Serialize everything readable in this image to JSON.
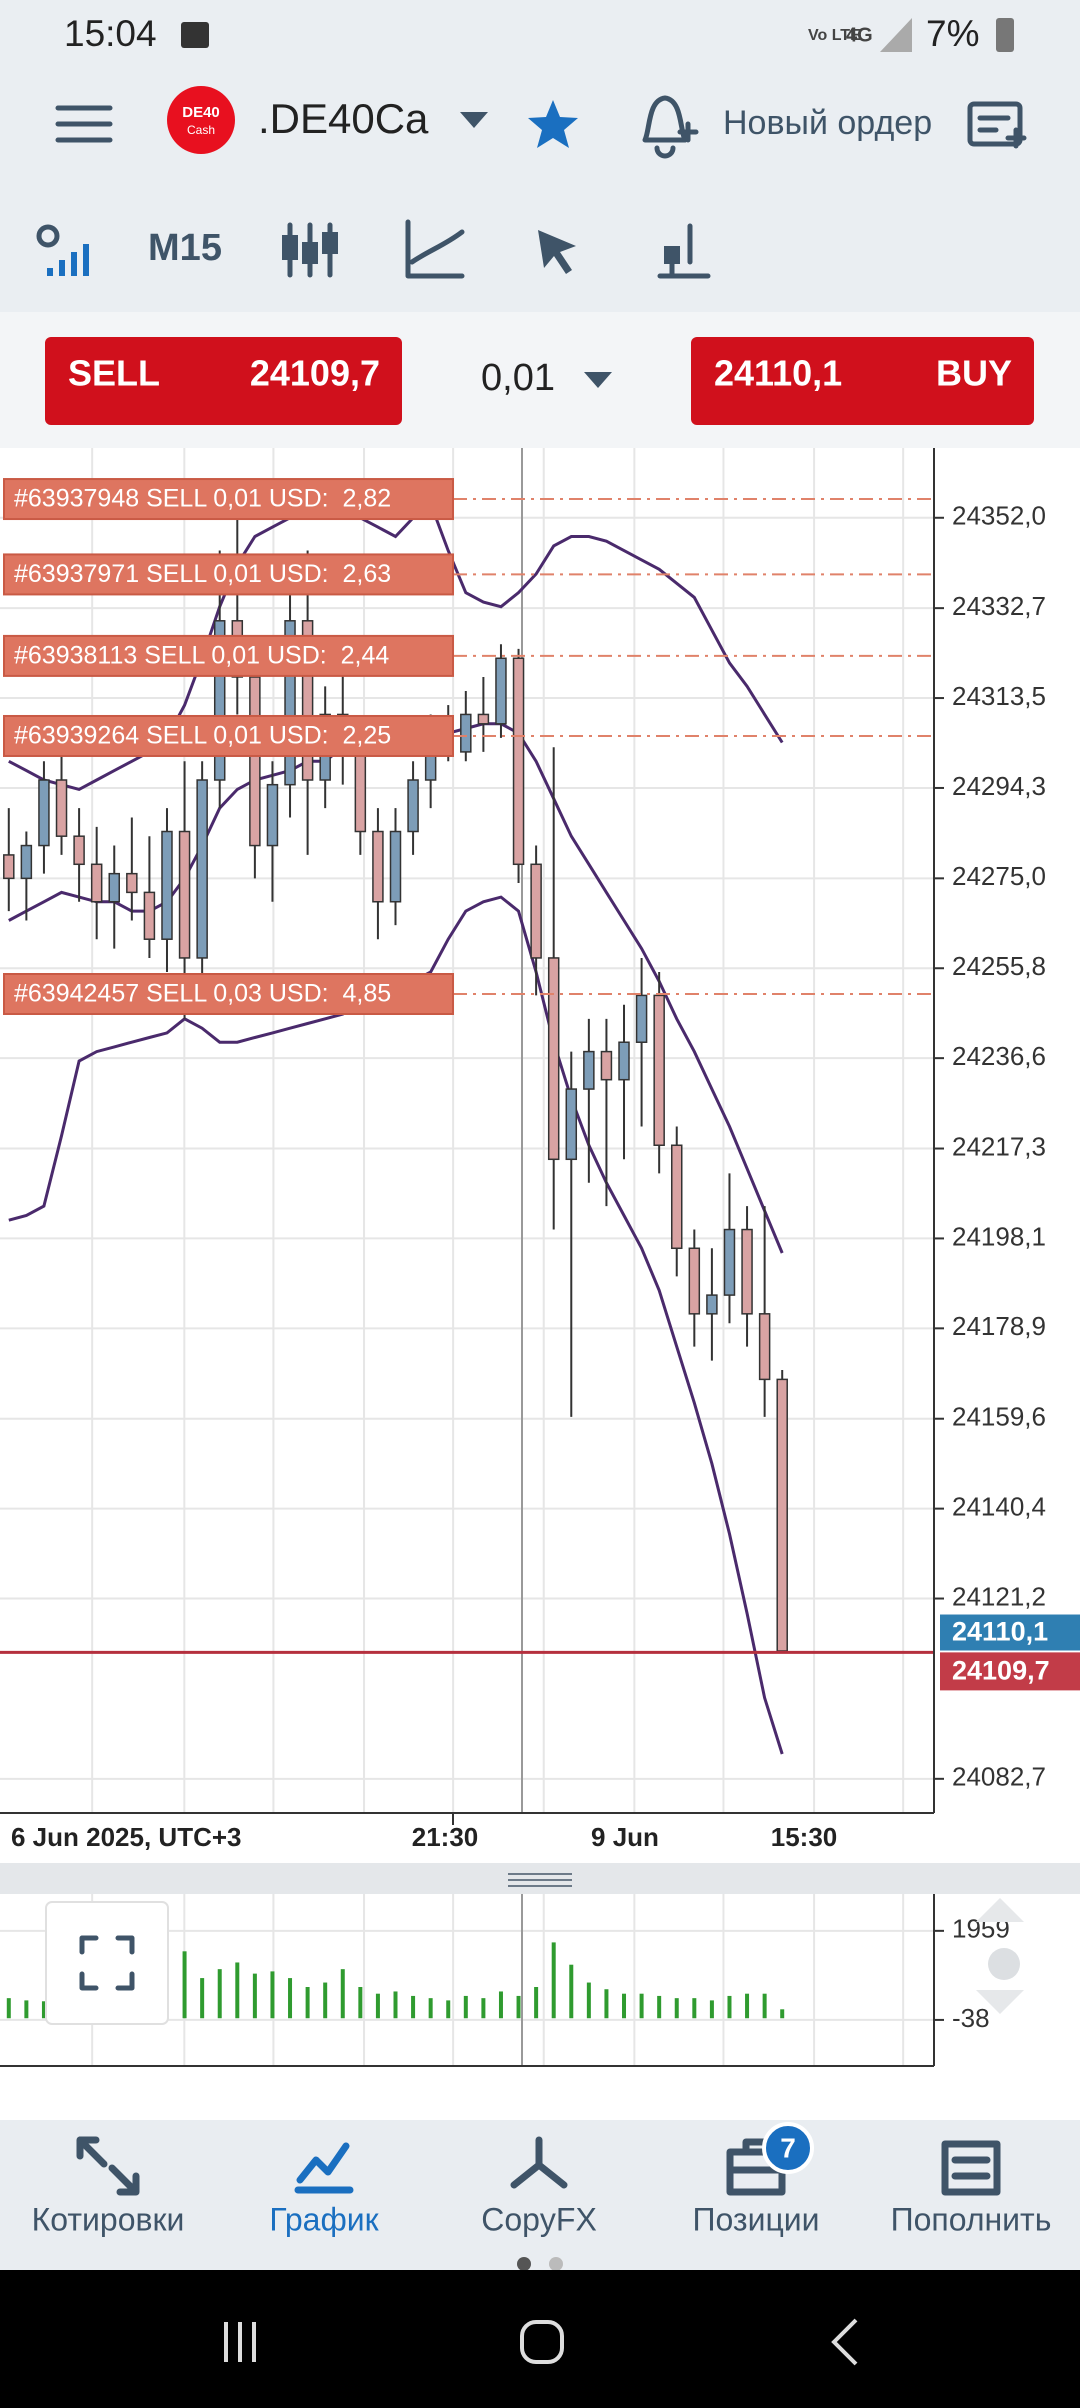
{
  "status_bar": {
    "time": "15:04",
    "battery": "7%"
  },
  "header": {
    "logo_top": "DE40",
    "logo_bottom": "Cash",
    "symbol": ".DE40Ca",
    "new_order": "Новый ордер"
  },
  "toolbar": {
    "timeframe": "M15"
  },
  "trade": {
    "sell": "SELL",
    "volume": "0,01",
    "buy": "BUY"
  },
  "chart_data": {
    "type": "candlestick",
    "grid": true,
    "up_color": "#7d9db8",
    "down_color": "#d9a3a3",
    "ylim": [
      24075.4,
      24366.9
    ],
    "yticks": [
      {
        "value": 24352.0,
        "label": "24352,0"
      },
      {
        "value": 24332.7,
        "label": "24332,7"
      },
      {
        "value": 24313.5,
        "label": "24313,5"
      },
      {
        "value": 24294.3,
        "label": "24294,3"
      },
      {
        "value": 24275.0,
        "label": "24275,0"
      },
      {
        "value": 24255.8,
        "label": "24255,8"
      },
      {
        "value": 24236.6,
        "label": "24236,6"
      },
      {
        "value": 24217.3,
        "label": "24217,3"
      },
      {
        "value": 24198.1,
        "label": "24198,1"
      },
      {
        "value": 24178.9,
        "label": "24178,9"
      },
      {
        "value": 24159.6,
        "label": "24159,6"
      },
      {
        "value": 24140.4,
        "label": "24140,4"
      },
      {
        "value": 24121.2,
        "label": "24121,2"
      },
      {
        "value": 24082.7,
        "label": "24082,7"
      }
    ],
    "time_labels": [
      "6 Jun 2025, UTC+3",
      "21:30",
      "9 Jun",
      "15:30"
    ],
    "open": [
      24280,
      24275,
      24282,
      24296,
      24284,
      24278,
      24270,
      24276,
      24272,
      24262,
      24285,
      24258,
      24296,
      24330,
      24318,
      24282,
      24295,
      24330,
      24296,
      24310,
      24302,
      24285,
      24270,
      24285,
      24296,
      24305,
      24302,
      24310,
      24308,
      24322,
      24278,
      24258,
      24215,
      24230,
      24238,
      24232,
      24240,
      24250,
      24218,
      24196,
      24182,
      24186,
      24200,
      24182,
      24168
    ],
    "high": [
      24290,
      24285,
      24300,
      24302,
      24290,
      24286,
      24282,
      24288,
      24284,
      24290,
      24300,
      24300,
      24345,
      24352,
      24325,
      24300,
      24340,
      24345,
      24316,
      24320,
      24308,
      24290,
      24290,
      24300,
      24310,
      24312,
      24315,
      24318,
      24325,
      24324,
      24282,
      24303,
      24238,
      24245,
      24245,
      24248,
      24258,
      24255,
      24222,
      24200,
      24196,
      24212,
      24205,
      24205,
      24170
    ],
    "low": [
      24268,
      24266,
      24276,
      24280,
      24270,
      24262,
      24260,
      24266,
      24258,
      24255,
      24245,
      24254,
      24290,
      24310,
      24275,
      24270,
      24288,
      24280,
      24290,
      24295,
      24280,
      24262,
      24265,
      24280,
      24290,
      24300,
      24300,
      24302,
      24305,
      24274,
      24250,
      24200,
      24160,
      24210,
      24205,
      24215,
      24222,
      24212,
      24190,
      24175,
      24172,
      24180,
      24175,
      24160,
      24110
    ],
    "close": [
      24275,
      24282,
      24296,
      24284,
      24278,
      24270,
      24276,
      24272,
      24262,
      24285,
      24258,
      24296,
      24330,
      24318,
      24282,
      24295,
      24330,
      24296,
      24310,
      24302,
      24285,
      24270,
      24285,
      24296,
      24305,
      24302,
      24310,
      24308,
      24322,
      24278,
      24258,
      24215,
      24230,
      24238,
      24232,
      24240,
      24250,
      24218,
      24196,
      24182,
      24186,
      24200,
      24182,
      24168,
      24110
    ],
    "bands": {
      "color": "#4a2a6c",
      "upper": [
        24300,
        24298,
        24296,
        24295,
        24294,
        24296,
        24298,
        24300,
        24302,
        24305,
        24312,
        24322,
        24333,
        24342,
        24348,
        24350,
        24352,
        24354,
        24355,
        24354,
        24352,
        24350,
        24348,
        24352,
        24355,
        24345,
        24336,
        24334,
        24333,
        24336,
        24340,
        24346,
        24348,
        24348,
        24347,
        24345,
        24343,
        24341,
        24338,
        24335,
        24328,
        24321,
        24316,
        24310,
        24304
      ],
      "middle": [
        24266,
        24268,
        24270,
        24272,
        24271,
        24270,
        24270,
        24268,
        24268,
        24270,
        24275,
        24282,
        24290,
        24294,
        24296,
        24297,
        24298,
        24300,
        24300,
        24303,
        24306,
        24307,
        24306,
        24305,
        24305,
        24306,
        24307,
        24308,
        24308,
        24306,
        24300,
        24292,
        24284,
        24278,
        24272,
        24266,
        24260,
        24253,
        24245,
        24238,
        24230,
        24222,
        24213,
        24204,
        24195
      ],
      "lower": [
        24202,
        24203,
        24205,
        24220,
        24236,
        24238,
        24239,
        24240,
        24241,
        24242,
        24245,
        24243,
        24240,
        24240,
        24241,
        24242,
        24243,
        24244,
        24245,
        24246,
        24248,
        24250,
        24251,
        24253,
        24255,
        24262,
        24268,
        24270,
        24271,
        24268,
        24255,
        24240,
        24228,
        24218,
        24210,
        24203,
        24196,
        24187,
        24175,
        24163,
        24150,
        24135,
        24118,
        24100,
        24088
      ]
    },
    "orders": [
      {
        "label": "#63937948 SELL 0,01 USD:  2,82",
        "price": 24356.0
      },
      {
        "label": "#63937971 SELL 0,01 USD:  2,63",
        "price": 24339.9
      },
      {
        "label": "#63938113 SELL 0,01 USD:  2,44",
        "price": 24322.5
      },
      {
        "label": "#63939264 SELL 0,01 USD:  2,25",
        "price": 24305.4
      },
      {
        "label": "#63942457 SELL 0,03 USD:  4,85",
        "price": 24250.3
      }
    ],
    "ask": {
      "value": 24110.1,
      "label": "24110,1"
    },
    "bid": {
      "value": 24109.7,
      "label": "24109,7"
    },
    "volume": {
      "color": "#2f9b2f",
      "ylim": [
        -1071,
        2785
      ],
      "yticks": [
        1959,
        -38
      ],
      "values": [
        450,
        400,
        380,
        420,
        350,
        400,
        380,
        420,
        450,
        500,
        1500,
        900,
        1100,
        1250,
        1000,
        1050,
        900,
        700,
        800,
        1100,
        700,
        550,
        600,
        500,
        450,
        400,
        500,
        450,
        600,
        500,
        700,
        1700,
        1200,
        800,
        650,
        550,
        550,
        500,
        450,
        450,
        400,
        500,
        550,
        550,
        200
      ]
    }
  },
  "nav": {
    "items": [
      "Котировки",
      "График",
      "CopyFX",
      "Позиции",
      "Пополнить"
    ],
    "active": 1,
    "positions_badge": "7"
  }
}
